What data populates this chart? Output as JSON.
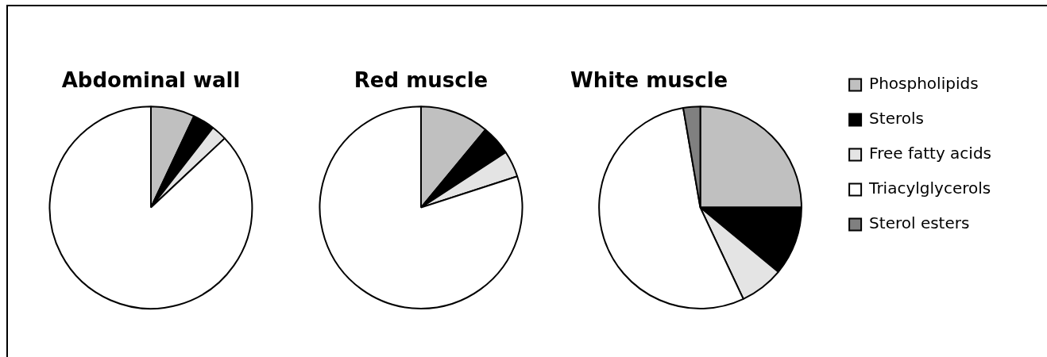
{
  "chart_data": [
    {
      "type": "pie",
      "title": "Abdominal wall",
      "categories": [
        null,
        null,
        null,
        null,
        null
      ],
      "values": [
        7,
        3.5,
        2.5,
        87,
        0
      ],
      "colors": [
        "#c0c0c0",
        "#000000",
        "#e4e4e4",
        "#ffffff",
        "#808080"
      ]
    },
    {
      "type": "pie",
      "title": "Red muscle",
      "categories": [
        null,
        null,
        null,
        null,
        null
      ],
      "values": [
        11,
        4.8,
        4.2,
        80,
        0
      ],
      "colors": [
        "#c0c0c0",
        "#000000",
        "#e4e4e4",
        "#ffffff",
        "#808080"
      ]
    },
    {
      "type": "pie",
      "title": "White muscle",
      "categories": [
        "Phospholipids",
        "Sterols",
        "Free fatty acids",
        "Triacylglycerols",
        "Sterol esters"
      ],
      "values": [
        25,
        11,
        7,
        54.3,
        2.7
      ],
      "colors": [
        "#c0c0c0",
        "#000000",
        "#e4e4e4",
        "#ffffff",
        "#808080"
      ],
      "legend": "right"
    }
  ]
}
